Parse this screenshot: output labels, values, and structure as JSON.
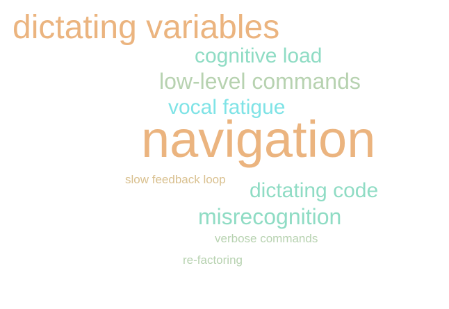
{
  "words": [
    {
      "id": "w-dictating-variables",
      "text": "dictating variables",
      "color": "#ebb47f"
    },
    {
      "id": "w-cognitive-load",
      "text": "cognitive load",
      "color": "#8fdcc4"
    },
    {
      "id": "w-low-level-commands",
      "text": "low-level commands",
      "color": "#b7d2b0"
    },
    {
      "id": "w-vocal-fatigue",
      "text": "vocal fatigue",
      "color": "#7fe3e6"
    },
    {
      "id": "w-navigation",
      "text": "navigation",
      "color": "#ebb47f"
    },
    {
      "id": "w-slow-feedback-loop",
      "text": "slow feedback loop",
      "color": "#d9c08f"
    },
    {
      "id": "w-dictating-code",
      "text": "dictating code",
      "color": "#8fdcc4"
    },
    {
      "id": "w-misrecognition",
      "text": "misrecognition",
      "color": "#8fdcc4"
    },
    {
      "id": "w-verbose-commands",
      "text": "verbose commands",
      "color": "#b7d2b0"
    },
    {
      "id": "w-re-factoring",
      "text": "re-factoring",
      "color": "#b7d2b0"
    }
  ]
}
